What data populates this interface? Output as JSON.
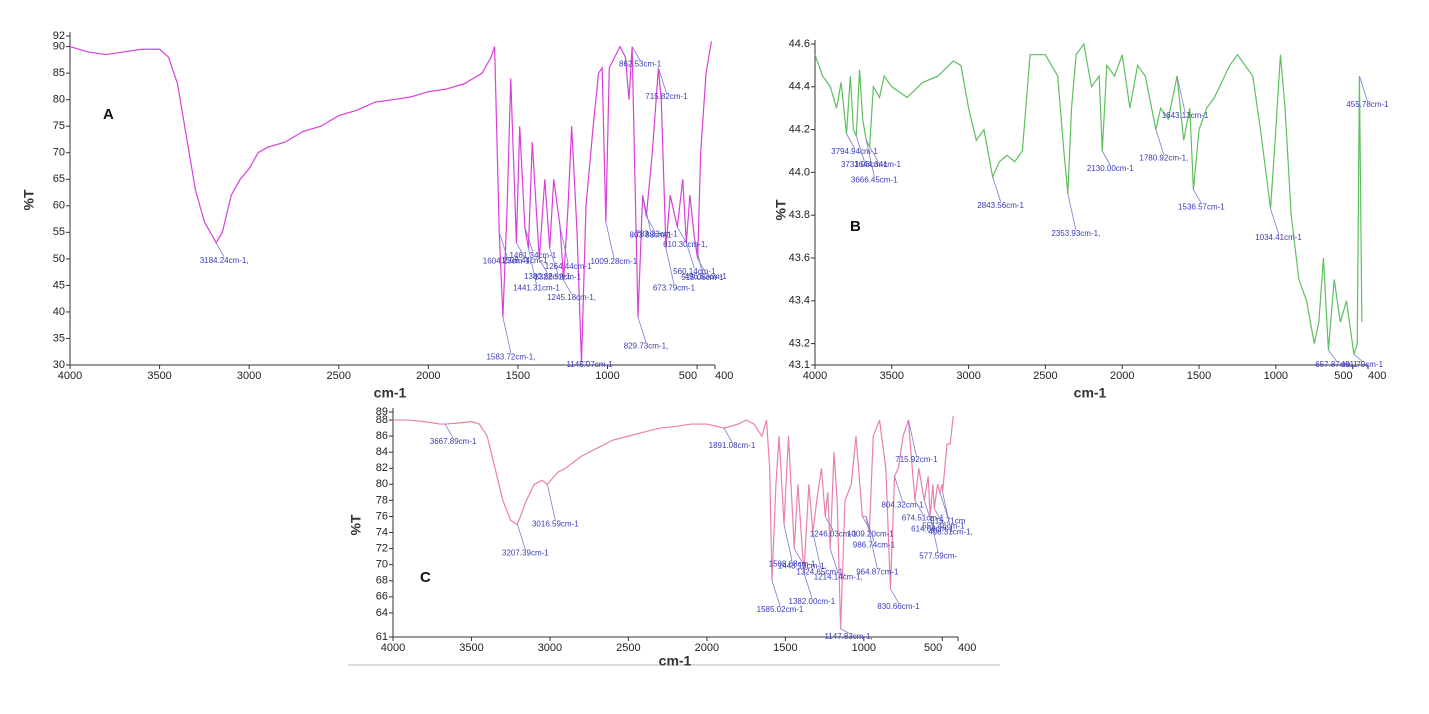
{
  "chart_data": [
    {
      "type": "line",
      "label": "A",
      "x_label": "cm-1",
      "y_label": "%T",
      "xlim": [
        4000,
        400
      ],
      "ylim": [
        30,
        92
      ],
      "xticks": [
        4000,
        3500,
        3000,
        2500,
        2000,
        1500,
        1000,
        500,
        400
      ],
      "yticks": [
        30,
        35,
        40,
        45,
        50,
        55,
        60,
        65,
        70,
        75,
        80,
        85,
        90,
        92
      ],
      "grid": false,
      "series": [
        {
          "color": "#d93fd9",
          "x": [
            4000,
            3900,
            3800,
            3700,
            3600,
            3500,
            3450,
            3400,
            3350,
            3300,
            3250,
            3184.24,
            3150,
            3100,
            3050,
            3000,
            2950,
            2900,
            2800,
            2700,
            2600,
            2500,
            2400,
            2300,
            2200,
            2100,
            2000,
            1900,
            1800,
            1700,
            1650,
            1630,
            1604.23,
            1583.72,
            1560,
            1540,
            1508.44,
            1490,
            1461.34,
            1441.31,
            1420,
            1380.68,
            1350,
            1322.52,
            1300,
            1264.44,
            1245.18,
            1220,
            1200,
            1170,
            1145.07,
            1120,
            1080,
            1050,
            1030,
            1009.28,
            990,
            960,
            930,
            900,
            880,
            862.53,
            850,
            829.73,
            803.88,
            783.33,
            750,
            715.82,
            700,
            673.79,
            650,
            610.3,
            580,
            560.14,
            540,
            515.06,
            496.53,
            480,
            450,
            420
          ],
          "values": [
            90,
            89,
            88.5,
            89,
            89.5,
            89.5,
            88,
            83,
            73,
            63,
            57,
            53,
            55,
            62,
            65,
            67,
            70,
            71,
            72,
            74,
            75,
            77,
            78,
            79.5,
            80,
            80.5,
            81.5,
            82,
            83,
            85,
            88,
            90,
            55,
            39,
            60,
            84,
            53,
            75,
            56,
            52,
            72,
            50,
            65,
            52,
            65,
            56,
            46,
            60,
            75,
            55,
            30.5,
            60,
            75,
            85,
            86,
            57,
            86,
            88,
            90,
            88,
            80,
            90,
            70,
            39,
            62,
            58,
            70,
            86,
            80,
            52,
            62,
            56,
            65,
            53,
            62,
            54,
            50,
            70,
            85,
            91
          ]
        }
      ],
      "annotations": [
        {
          "label": "3184.24cm-1,",
          "x": 3184.24
        },
        {
          "label": "1604.23cm-1,",
          "x": 1604.23
        },
        {
          "label": "1583.72cm-1,",
          "x": 1583.72
        },
        {
          "label": "1508.44cm-1",
          "x": 1508.44
        },
        {
          "label": "1461.34cm-1",
          "x": 1461.34
        },
        {
          "label": "1441.31cm-1",
          "x": 1441.31
        },
        {
          "label": "1380.68cm-1",
          "x": 1380.68
        },
        {
          "label": "1322.52cm-1",
          "x": 1322.52
        },
        {
          "label": "1264.44cm-1",
          "x": 1264.44
        },
        {
          "label": "1245.18cm-1,",
          "x": 1245.18
        },
        {
          "label": "1145.07cm-1",
          "x": 1145.07
        },
        {
          "label": "1009.28cm-1",
          "x": 1009.28
        },
        {
          "label": "862.53cm-1",
          "x": 862.53
        },
        {
          "label": "829.73cm-1,",
          "x": 829.73
        },
        {
          "label": "803.88cm-1",
          "x": 803.88
        },
        {
          "label": ", 783.33cm-1",
          "x": 783.33
        },
        {
          "label": "715.82cm-1",
          "x": 715.82
        },
        {
          "label": "673.79cm-1",
          "x": 673.79
        },
        {
          "label": "610.30cm-1,",
          "x": 610.3
        },
        {
          "label": "560.14cm-1",
          "x": 560.14
        },
        {
          "label": "515.06cm-1",
          "x": 515.06
        },
        {
          "label": "496.53cm-1",
          "x": 496.53
        }
      ]
    },
    {
      "type": "line",
      "label": "B",
      "x_label": "cm-1",
      "y_label": "%T",
      "xlim": [
        4000,
        400
      ],
      "ylim": [
        43.1,
        44.6
      ],
      "xticks": [
        4000,
        3500,
        3000,
        2500,
        2000,
        1500,
        1000,
        500,
        400
      ],
      "yticks": [
        43.1,
        43.2,
        43.4,
        43.6,
        43.8,
        {
          "value": 44,
          "label": "44.0"
        },
        44.2,
        44.4,
        44.6
      ],
      "grid": false,
      "series": [
        {
          "color": "#5cc05c",
          "x": [
            4000,
            3950,
            3900,
            3860,
            3830,
            3794.94,
            3770,
            3750,
            3731.06,
            3710,
            3690,
            3666.45,
            3644.34,
            3620,
            3580,
            3550,
            3500,
            3400,
            3300,
            3200,
            3100,
            3050,
            3000,
            2950,
            2900,
            2843.56,
            2800,
            2750,
            2700,
            2650,
            2600,
            2500,
            2420,
            2380,
            2353.93,
            2330,
            2300,
            2250,
            2200,
            2150,
            2130,
            2100,
            2050,
            2000,
            1950,
            1900,
            1850,
            1780.92,
            1750,
            1700,
            1643.13,
            1600,
            1560,
            1536.57,
            1500,
            1450,
            1400,
            1300,
            1250,
            1150,
            1100,
            1034.41,
            1000,
            970,
            940,
            900,
            850,
            800,
            750,
            720,
            690,
            657.87,
            620,
            580,
            540,
            491.79,
            470,
            455.78,
            440
          ],
          "values": [
            44.55,
            44.45,
            44.4,
            44.3,
            44.42,
            44.18,
            44.45,
            44.2,
            44.17,
            44.48,
            44.25,
            44.15,
            44.12,
            44.4,
            44.35,
            44.45,
            44.4,
            44.35,
            44.42,
            44.45,
            44.52,
            44.5,
            44.3,
            44.15,
            44.2,
            43.98,
            44.05,
            44.08,
            44.05,
            44.1,
            44.55,
            44.55,
            44.45,
            44.1,
            43.9,
            44.3,
            44.55,
            44.6,
            44.4,
            44.45,
            44.1,
            44.5,
            44.45,
            44.55,
            44.3,
            44.5,
            44.45,
            44.2,
            44.3,
            44.25,
            44.45,
            44.15,
            44.3,
            43.92,
            44.2,
            44.3,
            44.35,
            44.5,
            44.55,
            44.45,
            44.2,
            43.83,
            44.2,
            44.55,
            44.3,
            43.8,
            43.5,
            43.4,
            43.2,
            43.3,
            43.6,
            43.17,
            43.5,
            43.3,
            43.4,
            43.15,
            43.2,
            44.45,
            43.3
          ]
        }
      ],
      "annotations": [
        {
          "label": "3794.94cm-1",
          "x": 3794.94
        },
        {
          "label": "3731.06cm-1",
          "x": 3731.06
        },
        {
          "label": "3666.45cm-1",
          "x": 3666.45
        },
        {
          "label": "3644.34cm-1",
          "x": 3644.34
        },
        {
          "label": "2843.56cm-1",
          "x": 2843.56
        },
        {
          "label": "2353.93cm-1,",
          "x": 2353.93
        },
        {
          "label": "2130.00cm-1",
          "x": 2130
        },
        {
          "label": "1780.92cm-1,",
          "x": 1780.92
        },
        {
          "label": "1643.13cm-1",
          "x": 1643.13
        },
        {
          "label": "1536.57cm-1",
          "x": 1536.57
        },
        {
          "label": "1034.41cm-1",
          "x": 1034.41
        },
        {
          "label": "657.87cm-1",
          "x": 657.87
        },
        {
          "label": "491.79cm-1",
          "x": 491.79
        },
        {
          "label": "455.78cm-1",
          "x": 455.78
        }
      ]
    },
    {
      "type": "line",
      "label": "C",
      "x_label": "cm-1",
      "y_label": "%T",
      "xlim": [
        4000,
        400
      ],
      "ylim": [
        61,
        89
      ],
      "xticks": [
        4000,
        3500,
        3000,
        2500,
        2000,
        1500,
        1000,
        500,
        400
      ],
      "yticks": [
        61,
        64,
        66,
        68,
        70,
        72,
        74,
        76,
        78,
        80,
        82,
        84,
        86,
        88,
        89
      ],
      "grid": false,
      "series": [
        {
          "color": "#ea7fb0",
          "x": [
            4000,
            3900,
            3800,
            3700,
            3667.89,
            3600,
            3500,
            3450,
            3400,
            3350,
            3300,
            3250,
            3207.39,
            3150,
            3100,
            3050,
            3016.59,
            2950,
            2900,
            2800,
            2700,
            2600,
            2500,
            2400,
            2300,
            2200,
            2100,
            2000,
            1891.08,
            1800,
            1750,
            1700,
            1650,
            1620,
            1600,
            1585.02,
            1560,
            1540,
            1508.68,
            1480,
            1443.13,
            1420,
            1382,
            1350,
            1324.65,
            1300,
            1270,
            1246.03,
            1230,
            1214.14,
            1190,
            1170,
            1147.83,
            1120,
            1080,
            1050,
            1009.2,
            986.74,
            964.87,
            940,
            900,
            860,
            830.66,
            804.32,
            780,
            750,
            715.92,
            700,
            674.51,
            650,
            614.68,
            590,
            577.59,
            560,
            551.46,
            530,
            515.71,
            500,
            498.31,
            470,
            450,
            430
          ],
          "values": [
            88,
            88,
            87.8,
            87.5,
            87.5,
            87.6,
            87.8,
            87.5,
            86,
            82,
            78,
            75.5,
            75,
            78,
            80,
            80.5,
            80,
            81.5,
            82,
            83.5,
            84.5,
            85.5,
            86,
            86.5,
            87,
            87.2,
            87.5,
            87.5,
            87,
            87.5,
            88,
            87.5,
            86,
            88,
            82,
            68,
            80,
            86,
            75,
            86,
            72,
            80,
            69,
            80,
            74,
            78,
            82,
            76,
            79,
            72,
            84,
            78,
            62,
            78,
            80,
            86,
            76,
            76,
            74,
            86,
            88,
            82,
            67,
            81,
            82,
            86,
            88,
            84,
            78,
            82,
            78,
            81,
            76,
            80,
            77,
            80,
            79,
            80,
            79,
            85,
            85,
            88.5
          ]
        }
      ],
      "annotations": [
        {
          "label": "3667.89cm-1",
          "x": 3667.89
        },
        {
          "label": "3207.39cm-1",
          "x": 3207.39
        },
        {
          "label": "3016.59cm-1",
          "x": 3016.59
        },
        {
          "label": "1891.08cm-1",
          "x": 1891.08
        },
        {
          "label": "1585.02cm-1",
          "x": 1585.02
        },
        {
          "label": "1508.68cm-1",
          "x": 1508.68
        },
        {
          "label": "1443.13cm-1,",
          "x": 1443.13
        },
        {
          "label": "1382.00cm-1",
          "x": 1382
        },
        {
          "label": "1324.65cm-1,",
          "x": 1324.65
        },
        {
          "label": "1246.03cm-1",
          "x": 1246.03
        },
        {
          "label": "1214.14cm-1,",
          "x": 1214.14
        },
        {
          "label": "1147.83cm-1,",
          "x": 1147.83
        },
        {
          "label": "1009.20cm-1",
          "x": 1009.2
        },
        {
          "label": "986.74cm-1",
          "x": 986.74
        },
        {
          "label": "964.87cm-1",
          "x": 964.87
        },
        {
          "label": "830.66cm-1",
          "x": 830.66
        },
        {
          "label": "804.32cm-1",
          "x": 804.32
        },
        {
          "label": "715.92cm-1",
          "x": 715.92
        },
        {
          "label": "674.51cm-1",
          "x": 674.51
        },
        {
          "label": "614.68cm-1",
          "x": 614.68
        },
        {
          "label": "577.59cm-",
          "x": 577.59
        },
        {
          "label": ",551.46cm-1",
          "x": 551.46
        },
        {
          "label": "515.71cm",
          "x": 515.71
        },
        {
          "label": "498.31cm-1,",
          "x": 498.31
        }
      ]
    }
  ]
}
